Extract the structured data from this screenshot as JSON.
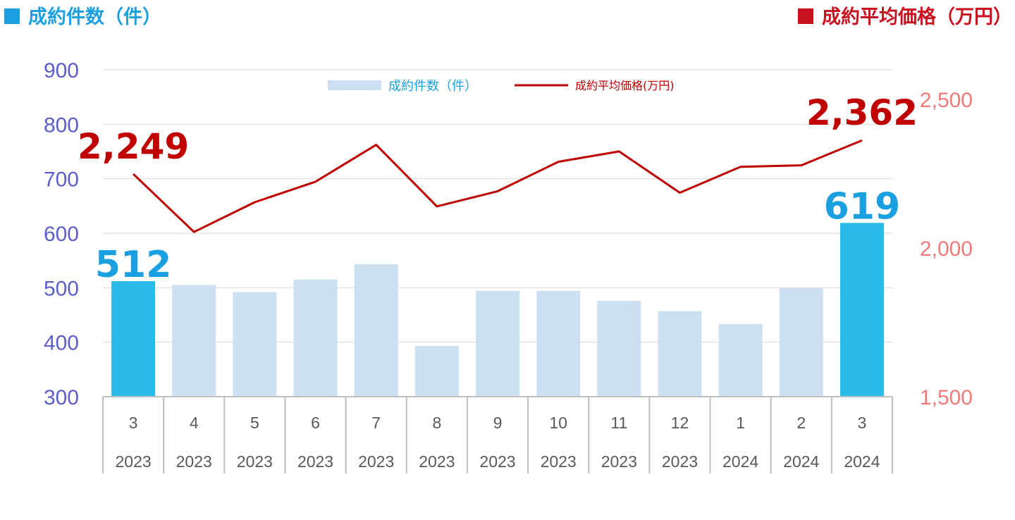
{
  "header": {
    "left_title": "成約件数（件）",
    "right_title": "成約平均価格（万円）"
  },
  "legend": {
    "bar_label": "成約件数（件）",
    "line_label": "成約平均価格(万円)"
  },
  "colors": {
    "bar_default": "#cddff3",
    "bar_highlight": "#29baea",
    "line": "#c00000",
    "left_axis": "#5b5fc7",
    "right_axis": "#f07a7a",
    "bar_label": "#1a9fe0",
    "line_label": "#c00000"
  },
  "chart_data": {
    "type": "bar",
    "categories": [
      "3",
      "4",
      "5",
      "6",
      "7",
      "8",
      "9",
      "10",
      "11",
      "12",
      "1",
      "2",
      "3"
    ],
    "years": [
      "2023",
      "2023",
      "2023",
      "2023",
      "2023",
      "2023",
      "2023",
      "2023",
      "2023",
      "2023",
      "2024",
      "2024",
      "2024"
    ],
    "series": [
      {
        "name": "成約件数（件）",
        "type": "bar",
        "axis": "left",
        "values": [
          512,
          505,
          492,
          515,
          543,
          393,
          494,
          494,
          476,
          457,
          433,
          499,
          619
        ],
        "highlight": [
          true,
          false,
          false,
          false,
          false,
          false,
          false,
          false,
          false,
          false,
          false,
          false,
          true
        ],
        "data_labels": [
          "512",
          "",
          "",
          "",
          "",
          "",
          "",
          "",
          "",
          "",
          "",
          "",
          "619"
        ]
      },
      {
        "name": "成約平均価格(万円)",
        "type": "line",
        "axis": "right",
        "values": [
          2249,
          2054,
          2154,
          2223,
          2347,
          2140,
          2191,
          2290,
          2325,
          2186,
          2273,
          2278,
          2362
        ],
        "data_labels": [
          "2,249",
          "",
          "",
          "",
          "",
          "",
          "",
          "",
          "",
          "",
          "",
          "",
          "2,362"
        ]
      }
    ],
    "left_axis": {
      "ylim": [
        300,
        900
      ],
      "ticks": [
        "300",
        "400",
        "500",
        "600",
        "700",
        "800",
        "900"
      ]
    },
    "right_axis": {
      "ylim": [
        1500,
        2600
      ],
      "ticks": [
        "1,500",
        "2,000",
        "2,500"
      ]
    },
    "grid": true,
    "legend_position": "top-center"
  }
}
